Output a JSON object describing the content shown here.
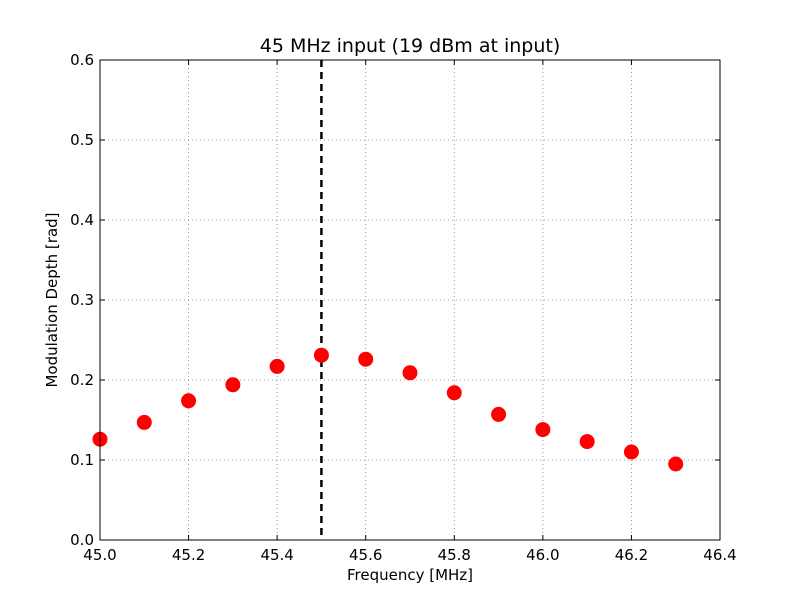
{
  "chart_data": {
    "type": "scatter",
    "title": "45 MHz input (19 dBm at input)",
    "xlabel": "Frequency [MHz]",
    "ylabel": "Modulation Depth [rad]",
    "xlim": [
      45.0,
      46.4
    ],
    "ylim": [
      0.0,
      0.6
    ],
    "xticks": [
      "45.0",
      "45.2",
      "45.4",
      "45.6",
      "45.8",
      "46.0",
      "46.2",
      "46.4"
    ],
    "yticks": [
      "0.0",
      "0.1",
      "0.2",
      "0.3",
      "0.4",
      "0.5",
      "0.6"
    ],
    "grid": true,
    "marker_color": "#ff0000",
    "reference_line": {
      "x": 45.5,
      "style": "dashed",
      "color": "#000000"
    },
    "series": [
      {
        "x": [
          45.0,
          45.1,
          45.2,
          45.3,
          45.4,
          45.5,
          45.6,
          45.7,
          45.8,
          45.9,
          46.0,
          46.1,
          46.2,
          46.3
        ],
        "y": [
          0.126,
          0.147,
          0.174,
          0.194,
          0.217,
          0.231,
          0.226,
          0.209,
          0.184,
          0.157,
          0.138,
          0.123,
          0.11,
          0.095
        ]
      }
    ]
  }
}
